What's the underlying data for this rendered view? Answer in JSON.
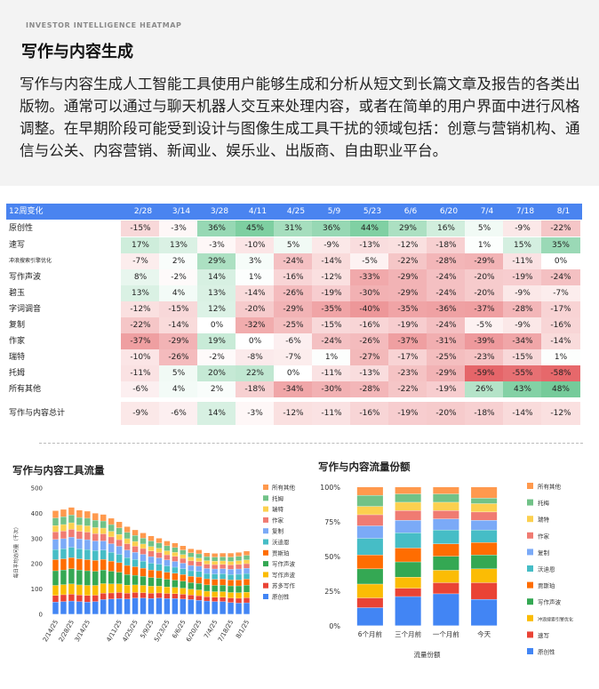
{
  "header": {
    "eyebrow": "INVESTOR INTELLIGENCE HEATMAP",
    "title": "写作与内容生成",
    "description": "写作与内容生成人工智能工具使用户能够生成和分析从短文到长篇文章及报告的各类出版物。通常可以通过与聊天机器人交互来处理内容，或者在简单的用户界面中进行风格调整。在早期阶段可能受到设计与图像生成工具干扰的领域包括：创意与营销机构、通信与公关、内容营销、新闻业、娱乐业、出版商、自由职业平台。"
  },
  "colors": {
    "header_bg": "#4a84f0",
    "positive": "#34b36b",
    "negative": "#e0474b",
    "top_bg": "#f3f3f3"
  },
  "heatmap": {
    "corner_label": "12周变化",
    "columns": [
      "2/28",
      "3/14",
      "3/28",
      "4/11",
      "4/25",
      "5/9",
      "5/23",
      "6/6",
      "6/20",
      "7/4",
      "7/18",
      "8/1"
    ],
    "rows": [
      {
        "label": "原创性",
        "values": [
          "-15%",
          "-3%",
          "36%",
          "45%",
          "31%",
          "36%",
          "44%",
          "29%",
          "16%",
          "5%",
          "-9%",
          "-22%"
        ]
      },
      {
        "label": "速写",
        "values": [
          "17%",
          "13%",
          "-3%",
          "-10%",
          "5%",
          "-9%",
          "-13%",
          "-12%",
          "-18%",
          "1%",
          "15%",
          "35%"
        ]
      },
      {
        "label": "冲浪搜索引擎优化",
        "values": [
          "-7%",
          "2%",
          "29%",
          "3%",
          "-24%",
          "-14%",
          "-5%",
          "-22%",
          "-28%",
          "-29%",
          "-11%",
          "0%"
        ]
      },
      {
        "label": "写作声波",
        "values": [
          "8%",
          "-2%",
          "14%",
          "1%",
          "-16%",
          "-12%",
          "-33%",
          "-29%",
          "-24%",
          "-20%",
          "-19%",
          "-24%"
        ]
      },
      {
        "label": "碧玉",
        "values": [
          "13%",
          "4%",
          "13%",
          "-14%",
          "-26%",
          "-19%",
          "-30%",
          "-29%",
          "-24%",
          "-20%",
          "-9%",
          "-7%"
        ]
      },
      {
        "label": "字词调音",
        "values": [
          "-12%",
          "-15%",
          "12%",
          "-20%",
          "-29%",
          "-35%",
          "-40%",
          "-35%",
          "-36%",
          "-37%",
          "-28%",
          "-17%"
        ]
      },
      {
        "label": "复制",
        "values": [
          "-22%",
          "-14%",
          "0%",
          "-32%",
          "-25%",
          "-15%",
          "-16%",
          "-19%",
          "-24%",
          "-5%",
          "-9%",
          "-16%"
        ]
      },
      {
        "label": "作家",
        "values": [
          "-37%",
          "-29%",
          "19%",
          "0%",
          "-6%",
          "-24%",
          "-26%",
          "-37%",
          "-31%",
          "-39%",
          "-34%",
          "-14%"
        ]
      },
      {
        "label": "瑞特",
        "values": [
          "-10%",
          "-26%",
          "-2%",
          "-8%",
          "-7%",
          "1%",
          "-27%",
          "-17%",
          "-25%",
          "-23%",
          "-15%",
          "1%"
        ]
      },
      {
        "label": "托姆",
        "values": [
          "-11%",
          "5%",
          "20%",
          "22%",
          "0%",
          "-11%",
          "-13%",
          "-23%",
          "-29%",
          "-59%",
          "-55%",
          "-58%"
        ]
      },
      {
        "label": "所有其他",
        "values": [
          "-6%",
          "4%",
          "2%",
          "-18%",
          "-34%",
          "-30%",
          "-28%",
          "-22%",
          "-19%",
          "26%",
          "43%",
          "48%"
        ]
      },
      {
        "label": "写作与内容总计",
        "values": [
          "-9%",
          "-6%",
          "14%",
          "-3%",
          "-12%",
          "-11%",
          "-16%",
          "-19%",
          "-20%",
          "-18%",
          "-14%",
          "-12%"
        ]
      }
    ]
  },
  "chart_data": [
    {
      "type": "bar",
      "stacked": true,
      "title": "写作与内容工具流量",
      "ylabel": "每日平均访问量（千次）",
      "xlabel": "",
      "ylim": [
        0,
        500
      ],
      "yticks": [
        0,
        100,
        200,
        300,
        400,
        500
      ],
      "categories": [
        "2/14/25",
        "2/21/25",
        "2/28/25",
        "3/7/25",
        "3/14/25",
        "3/21/25",
        "3/28/25",
        "4/4/25",
        "4/11/25",
        "4/18/25",
        "4/25/25",
        "5/2/25",
        "5/9/25",
        "5/16/25",
        "5/23/25",
        "5/30/25",
        "6/6/25",
        "6/13/25",
        "6/20/25",
        "6/27/25",
        "7/4/25",
        "7/11/25",
        "7/18/25",
        "7/25/25",
        "8/1/25"
      ],
      "tick_labels": [
        "2/14/25",
        "2/28/25",
        "3/14/25",
        "4/11/25",
        "4/25/25",
        "5/9/25",
        "5/23/25",
        "6/6/25",
        "6/20/25",
        "7/4/25",
        "7/18/25",
        "8/1/25"
      ],
      "series": [
        {
          "name": "原创性",
          "color": "#4285f4",
          "values": [
            48,
            50,
            52,
            50,
            48,
            50,
            58,
            60,
            62,
            60,
            64,
            64,
            62,
            64,
            62,
            62,
            60,
            58,
            55,
            52,
            50,
            50,
            46,
            44,
            45
          ]
        },
        {
          "name": "苏多写作",
          "color": "#ea4335",
          "values": [
            26,
            27,
            27,
            26,
            26,
            25,
            25,
            24,
            24,
            23,
            22,
            21,
            21,
            20,
            20,
            19,
            19,
            18,
            18,
            17,
            17,
            17,
            18,
            19,
            20
          ]
        },
        {
          "name": "写作声波",
          "color": "#fbbc04",
          "values": [
            40,
            40,
            41,
            40,
            40,
            39,
            38,
            36,
            34,
            32,
            30,
            29,
            28,
            27,
            26,
            25,
            24,
            23,
            23,
            22,
            22,
            22,
            22,
            22,
            22
          ]
        },
        {
          "name": "写作声波",
          "color": "#34a853",
          "values": [
            58,
            58,
            60,
            59,
            58,
            56,
            54,
            50,
            46,
            42,
            38,
            36,
            34,
            32,
            30,
            29,
            28,
            26,
            26,
            25,
            25,
            26,
            26,
            27,
            28
          ]
        },
        {
          "name": "贾斯珀",
          "color": "#ff6d01",
          "values": [
            44,
            44,
            44,
            44,
            44,
            43,
            42,
            40,
            38,
            36,
            34,
            32,
            30,
            29,
            28,
            27,
            26,
            25,
            25,
            24,
            24,
            24,
            24,
            24,
            24
          ]
        },
        {
          "name": "沃迪恩",
          "color": "#46bdc6",
          "values": [
            40,
            40,
            41,
            40,
            40,
            39,
            37,
            35,
            33,
            31,
            29,
            28,
            27,
            26,
            25,
            24,
            23,
            22,
            22,
            21,
            21,
            21,
            21,
            22,
            22
          ]
        },
        {
          "name": "复制",
          "color": "#7baaf7",
          "values": [
            40,
            40,
            40,
            39,
            39,
            38,
            36,
            34,
            32,
            30,
            28,
            27,
            26,
            25,
            24,
            23,
            22,
            21,
            21,
            20,
            20,
            20,
            21,
            21,
            21
          ]
        },
        {
          "name": "作家",
          "color": "#f07b72",
          "values": [
            30,
            30,
            31,
            30,
            30,
            29,
            28,
            27,
            26,
            25,
            24,
            23,
            22,
            21,
            20,
            20,
            19,
            18,
            18,
            17,
            17,
            17,
            17,
            18,
            18
          ]
        },
        {
          "name": "瑞特",
          "color": "#fcd04f",
          "values": [
            25,
            26,
            26,
            25,
            25,
            24,
            23,
            22,
            21,
            20,
            19,
            18,
            18,
            17,
            16,
            16,
            15,
            15,
            14,
            14,
            14,
            14,
            14,
            15,
            15
          ]
        },
        {
          "name": "托姆",
          "color": "#71c287",
          "values": [
            30,
            31,
            31,
            30,
            30,
            29,
            28,
            27,
            26,
            25,
            24,
            23,
            22,
            21,
            20,
            19,
            18,
            17,
            17,
            16,
            16,
            16,
            17,
            17,
            18
          ]
        },
        {
          "name": "所有其他",
          "color": "#ff994d",
          "values": [
            29,
            29,
            30,
            29,
            28,
            28,
            26,
            25,
            24,
            23,
            22,
            21,
            20,
            19,
            19,
            18,
            17,
            16,
            16,
            15,
            15,
            15,
            16,
            16,
            17
          ]
        }
      ],
      "legend": [
        {
          "name": "所有其他",
          "color": "#ff994d"
        },
        {
          "name": "托姆",
          "color": "#71c287"
        },
        {
          "name": "瑞特",
          "color": "#fcd04f"
        },
        {
          "name": "作家",
          "color": "#f07b72"
        },
        {
          "name": "复制",
          "color": "#7baaf7"
        },
        {
          "name": "沃迪恩",
          "color": "#46bdc6"
        },
        {
          "name": "贾斯珀",
          "color": "#ff6d01"
        },
        {
          "name": "写作声波",
          "color": "#34a853"
        },
        {
          "name": "写作声波",
          "color": "#fbbc04"
        },
        {
          "name": "苏多写作",
          "color": "#ea4335"
        },
        {
          "name": "原创性",
          "color": "#4285f4"
        }
      ]
    },
    {
      "type": "bar",
      "stacked": true,
      "percent": true,
      "title": "写作与内容流量份额",
      "xlabel": "流量份额",
      "ylabel": "",
      "ylim": [
        0,
        100
      ],
      "yticks": [
        "0%",
        "25%",
        "50%",
        "75%",
        "100%"
      ],
      "categories": [
        "6个月前",
        "三个月前",
        "一个月前",
        "今天"
      ],
      "series": [
        {
          "name": "原创性",
          "color": "#4285f4",
          "values": [
            13,
            21,
            23,
            19
          ]
        },
        {
          "name": "速写",
          "color": "#ea4335",
          "values": [
            7,
            6,
            8,
            12
          ]
        },
        {
          "name": "冲浪搜索引擎优化",
          "color": "#fbbc04",
          "values": [
            10,
            8,
            9,
            10
          ]
        },
        {
          "name": "写作声波",
          "color": "#34a853",
          "values": [
            11,
            11,
            10,
            10
          ]
        },
        {
          "name": "贾斯珀",
          "color": "#ff6d01",
          "values": [
            10,
            10,
            9,
            9
          ]
        },
        {
          "name": "沃迪恩",
          "color": "#46bdc6",
          "values": [
            12,
            11,
            10,
            9
          ]
        },
        {
          "name": "复制",
          "color": "#7baaf7",
          "values": [
            9,
            9,
            8,
            7
          ]
        },
        {
          "name": "作家",
          "color": "#f07b72",
          "values": [
            8,
            7,
            6,
            6
          ]
        },
        {
          "name": "瑞特",
          "color": "#fcd04f",
          "values": [
            6,
            6,
            6,
            6
          ]
        },
        {
          "name": "托梅",
          "color": "#71c287",
          "values": [
            8,
            6,
            6,
            4
          ]
        },
        {
          "name": "所有其他",
          "color": "#ff994d",
          "values": [
            6,
            5,
            5,
            8
          ]
        }
      ],
      "legend": [
        {
          "name": "所有其他",
          "color": "#ff994d"
        },
        {
          "name": "托梅",
          "color": "#71c287"
        },
        {
          "name": "瑞特",
          "color": "#fcd04f"
        },
        {
          "name": "作家",
          "color": "#f07b72"
        },
        {
          "name": "复制",
          "color": "#7baaf7"
        },
        {
          "name": "沃迪恩",
          "color": "#46bdc6"
        },
        {
          "name": "贾斯珀",
          "color": "#ff6d01"
        },
        {
          "name": "写作声波",
          "color": "#34a853"
        },
        {
          "name": "冲浪搜索引擎优化",
          "color": "#fbbc04"
        },
        {
          "name": "速写",
          "color": "#ea4335"
        },
        {
          "name": "原创性",
          "color": "#4285f4"
        }
      ]
    }
  ]
}
